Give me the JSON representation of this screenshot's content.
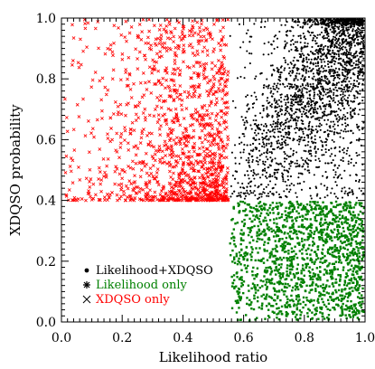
{
  "chart_data": {
    "type": "scatter",
    "title": "",
    "xlabel": "Likelihood ratio",
    "ylabel": "XDQSO probability",
    "xlim": [
      0.0,
      1.0
    ],
    "ylim": [
      0.0,
      1.0
    ],
    "xticks": [
      "0.0",
      "0.2",
      "0.4",
      "0.6",
      "0.8",
      "1.0"
    ],
    "yticks": [
      "0.0",
      "0.2",
      "0.4",
      "0.6",
      "0.8",
      "1.0"
    ],
    "x_threshold": 0.55,
    "y_threshold": 0.4,
    "grid": false,
    "legend_position": "bottom-left",
    "series": [
      {
        "name": "Likelihood+XDQSO",
        "marker": "dot",
        "color": "#000000",
        "region": {
          "x": [
            0.55,
            1.0
          ],
          "y": [
            0.4,
            1.0
          ]
        },
        "density": "increasing toward x=1.0, strongly concentrated along a diagonal band from (0.55, 0.45) to (1.0, 1.0)",
        "approx_count": 2600
      },
      {
        "name": "Likelihood only",
        "marker": "asterisk",
        "color": "#008000",
        "region": {
          "x": [
            0.55,
            1.0
          ],
          "y": [
            0.0,
            0.4
          ]
        },
        "density": "roughly uniform, denser near top and right",
        "approx_count": 1500
      },
      {
        "name": "XDQSO only",
        "marker": "cross",
        "color": "#ff0000",
        "region": {
          "x": [
            0.0,
            0.55
          ],
          "y": [
            0.4,
            1.0
          ]
        },
        "density": "concentrated near y=0.40-0.60 and x=0.30-0.55, sparse near top-left",
        "approx_count": 1300
      }
    ]
  }
}
